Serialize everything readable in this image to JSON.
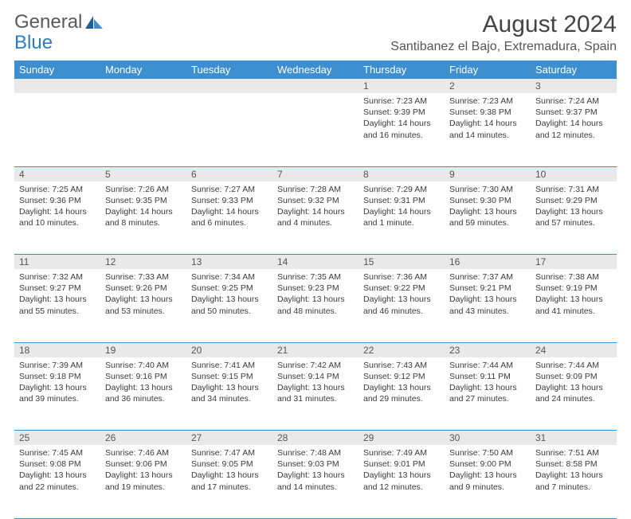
{
  "logo": {
    "text1": "General",
    "text2": "Blue"
  },
  "title": "August 2024",
  "location": "Santibanez el Bajo, Extremadura, Spain",
  "headers": [
    "Sunday",
    "Monday",
    "Tuesday",
    "Wednesday",
    "Thursday",
    "Friday",
    "Saturday"
  ],
  "colors": {
    "header_bg": "#3d8fcf",
    "header_text": "#ffffff",
    "daynum_bg": "#e9e9e9",
    "border": "#3d8fcf",
    "body_text": "#3a3a3a",
    "logo_gray": "#5a5a5a",
    "logo_blue": "#2d7cc1"
  },
  "fonts": {
    "title_size": 30,
    "location_size": 16,
    "header_size": 13,
    "daynum_size": 12,
    "cell_size": 10.5
  },
  "weeks": [
    [
      null,
      null,
      null,
      null,
      {
        "n": "1",
        "sr": "Sunrise: 7:23 AM",
        "ss": "Sunset: 9:39 PM",
        "d1": "Daylight: 14 hours",
        "d2": "and 16 minutes."
      },
      {
        "n": "2",
        "sr": "Sunrise: 7:23 AM",
        "ss": "Sunset: 9:38 PM",
        "d1": "Daylight: 14 hours",
        "d2": "and 14 minutes."
      },
      {
        "n": "3",
        "sr": "Sunrise: 7:24 AM",
        "ss": "Sunset: 9:37 PM",
        "d1": "Daylight: 14 hours",
        "d2": "and 12 minutes."
      }
    ],
    [
      {
        "n": "4",
        "sr": "Sunrise: 7:25 AM",
        "ss": "Sunset: 9:36 PM",
        "d1": "Daylight: 14 hours",
        "d2": "and 10 minutes."
      },
      {
        "n": "5",
        "sr": "Sunrise: 7:26 AM",
        "ss": "Sunset: 9:35 PM",
        "d1": "Daylight: 14 hours",
        "d2": "and 8 minutes."
      },
      {
        "n": "6",
        "sr": "Sunrise: 7:27 AM",
        "ss": "Sunset: 9:33 PM",
        "d1": "Daylight: 14 hours",
        "d2": "and 6 minutes."
      },
      {
        "n": "7",
        "sr": "Sunrise: 7:28 AM",
        "ss": "Sunset: 9:32 PM",
        "d1": "Daylight: 14 hours",
        "d2": "and 4 minutes."
      },
      {
        "n": "8",
        "sr": "Sunrise: 7:29 AM",
        "ss": "Sunset: 9:31 PM",
        "d1": "Daylight: 14 hours",
        "d2": "and 1 minute."
      },
      {
        "n": "9",
        "sr": "Sunrise: 7:30 AM",
        "ss": "Sunset: 9:30 PM",
        "d1": "Daylight: 13 hours",
        "d2": "and 59 minutes."
      },
      {
        "n": "10",
        "sr": "Sunrise: 7:31 AM",
        "ss": "Sunset: 9:29 PM",
        "d1": "Daylight: 13 hours",
        "d2": "and 57 minutes."
      }
    ],
    [
      {
        "n": "11",
        "sr": "Sunrise: 7:32 AM",
        "ss": "Sunset: 9:27 PM",
        "d1": "Daylight: 13 hours",
        "d2": "and 55 minutes."
      },
      {
        "n": "12",
        "sr": "Sunrise: 7:33 AM",
        "ss": "Sunset: 9:26 PM",
        "d1": "Daylight: 13 hours",
        "d2": "and 53 minutes."
      },
      {
        "n": "13",
        "sr": "Sunrise: 7:34 AM",
        "ss": "Sunset: 9:25 PM",
        "d1": "Daylight: 13 hours",
        "d2": "and 50 minutes."
      },
      {
        "n": "14",
        "sr": "Sunrise: 7:35 AM",
        "ss": "Sunset: 9:23 PM",
        "d1": "Daylight: 13 hours",
        "d2": "and 48 minutes."
      },
      {
        "n": "15",
        "sr": "Sunrise: 7:36 AM",
        "ss": "Sunset: 9:22 PM",
        "d1": "Daylight: 13 hours",
        "d2": "and 46 minutes."
      },
      {
        "n": "16",
        "sr": "Sunrise: 7:37 AM",
        "ss": "Sunset: 9:21 PM",
        "d1": "Daylight: 13 hours",
        "d2": "and 43 minutes."
      },
      {
        "n": "17",
        "sr": "Sunrise: 7:38 AM",
        "ss": "Sunset: 9:19 PM",
        "d1": "Daylight: 13 hours",
        "d2": "and 41 minutes."
      }
    ],
    [
      {
        "n": "18",
        "sr": "Sunrise: 7:39 AM",
        "ss": "Sunset: 9:18 PM",
        "d1": "Daylight: 13 hours",
        "d2": "and 39 minutes."
      },
      {
        "n": "19",
        "sr": "Sunrise: 7:40 AM",
        "ss": "Sunset: 9:16 PM",
        "d1": "Daylight: 13 hours",
        "d2": "and 36 minutes."
      },
      {
        "n": "20",
        "sr": "Sunrise: 7:41 AM",
        "ss": "Sunset: 9:15 PM",
        "d1": "Daylight: 13 hours",
        "d2": "and 34 minutes."
      },
      {
        "n": "21",
        "sr": "Sunrise: 7:42 AM",
        "ss": "Sunset: 9:14 PM",
        "d1": "Daylight: 13 hours",
        "d2": "and 31 minutes."
      },
      {
        "n": "22",
        "sr": "Sunrise: 7:43 AM",
        "ss": "Sunset: 9:12 PM",
        "d1": "Daylight: 13 hours",
        "d2": "and 29 minutes."
      },
      {
        "n": "23",
        "sr": "Sunrise: 7:44 AM",
        "ss": "Sunset: 9:11 PM",
        "d1": "Daylight: 13 hours",
        "d2": "and 27 minutes."
      },
      {
        "n": "24",
        "sr": "Sunrise: 7:44 AM",
        "ss": "Sunset: 9:09 PM",
        "d1": "Daylight: 13 hours",
        "d2": "and 24 minutes."
      }
    ],
    [
      {
        "n": "25",
        "sr": "Sunrise: 7:45 AM",
        "ss": "Sunset: 9:08 PM",
        "d1": "Daylight: 13 hours",
        "d2": "and 22 minutes."
      },
      {
        "n": "26",
        "sr": "Sunrise: 7:46 AM",
        "ss": "Sunset: 9:06 PM",
        "d1": "Daylight: 13 hours",
        "d2": "and 19 minutes."
      },
      {
        "n": "27",
        "sr": "Sunrise: 7:47 AM",
        "ss": "Sunset: 9:05 PM",
        "d1": "Daylight: 13 hours",
        "d2": "and 17 minutes."
      },
      {
        "n": "28",
        "sr": "Sunrise: 7:48 AM",
        "ss": "Sunset: 9:03 PM",
        "d1": "Daylight: 13 hours",
        "d2": "and 14 minutes."
      },
      {
        "n": "29",
        "sr": "Sunrise: 7:49 AM",
        "ss": "Sunset: 9:01 PM",
        "d1": "Daylight: 13 hours",
        "d2": "and 12 minutes."
      },
      {
        "n": "30",
        "sr": "Sunrise: 7:50 AM",
        "ss": "Sunset: 9:00 PM",
        "d1": "Daylight: 13 hours",
        "d2": "and 9 minutes."
      },
      {
        "n": "31",
        "sr": "Sunrise: 7:51 AM",
        "ss": "Sunset: 8:58 PM",
        "d1": "Daylight: 13 hours",
        "d2": "and 7 minutes."
      }
    ]
  ]
}
